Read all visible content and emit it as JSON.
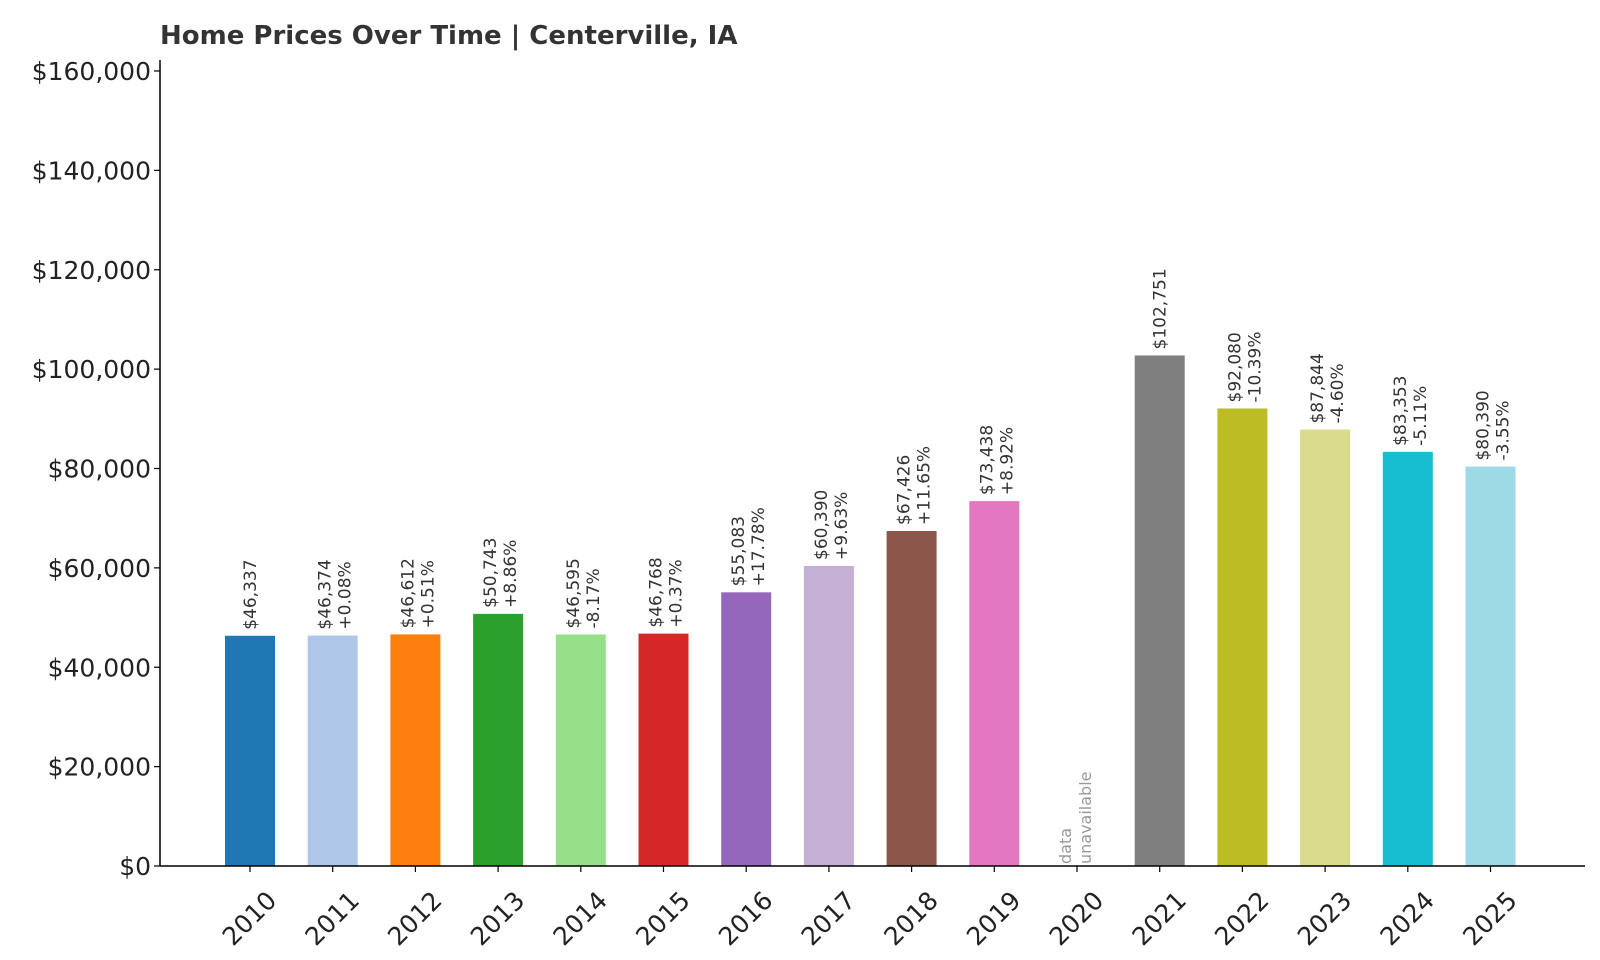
{
  "chart_data": {
    "type": "bar",
    "title": "Home Prices Over Time | Centerville, IA",
    "xlabel": "",
    "ylabel": "",
    "ylim": [
      0,
      160000
    ],
    "yticks": [
      "$0",
      "$20,000",
      "$40,000",
      "$60,000",
      "$80,000",
      "$100,000",
      "$120,000",
      "$140,000",
      "$160,000"
    ],
    "ytick_values": [
      0,
      20000,
      40000,
      60000,
      80000,
      100000,
      120000,
      140000,
      160000
    ],
    "grid": false,
    "categories": [
      "2010",
      "2011",
      "2012",
      "2013",
      "2014",
      "2015",
      "2016",
      "2017",
      "2018",
      "2019",
      "2020",
      "2021",
      "2022",
      "2023",
      "2024",
      "2025"
    ],
    "values": [
      46337,
      46374,
      46612,
      50743,
      46595,
      46768,
      55083,
      60390,
      67426,
      73438,
      null,
      102751,
      92080,
      87844,
      83353,
      80390
    ],
    "value_labels": [
      "$46,337",
      "$46,374",
      "$46,612",
      "$50,743",
      "$46,595",
      "$46,768",
      "$55,083",
      "$60,390",
      "$67,426",
      "$73,438",
      "",
      "$102,751",
      "$92,080",
      "$87,844",
      "$83,353",
      "$80,390"
    ],
    "change_labels": [
      "",
      "+0.08%",
      "+0.51%",
      "+8.86%",
      "-8.17%",
      "+0.37%",
      "+17.78%",
      "+9.63%",
      "+11.65%",
      "+8.92%",
      "",
      "",
      "-10.39%",
      "-4.60%",
      "-5.11%",
      "-3.55%"
    ],
    "missing_label": [
      "data",
      "unavailable"
    ],
    "colors": [
      "#1f77b4",
      "#aec7e8",
      "#ff7f0e",
      "#2ca02c",
      "#98df8a",
      "#d62728",
      "#9467bd",
      "#c5b0d5",
      "#8c564b",
      "#e377c2",
      "#f7b6d2",
      "#7f7f7f",
      "#bcbd22",
      "#dbdb8d",
      "#17becf",
      "#9edae5"
    ]
  }
}
